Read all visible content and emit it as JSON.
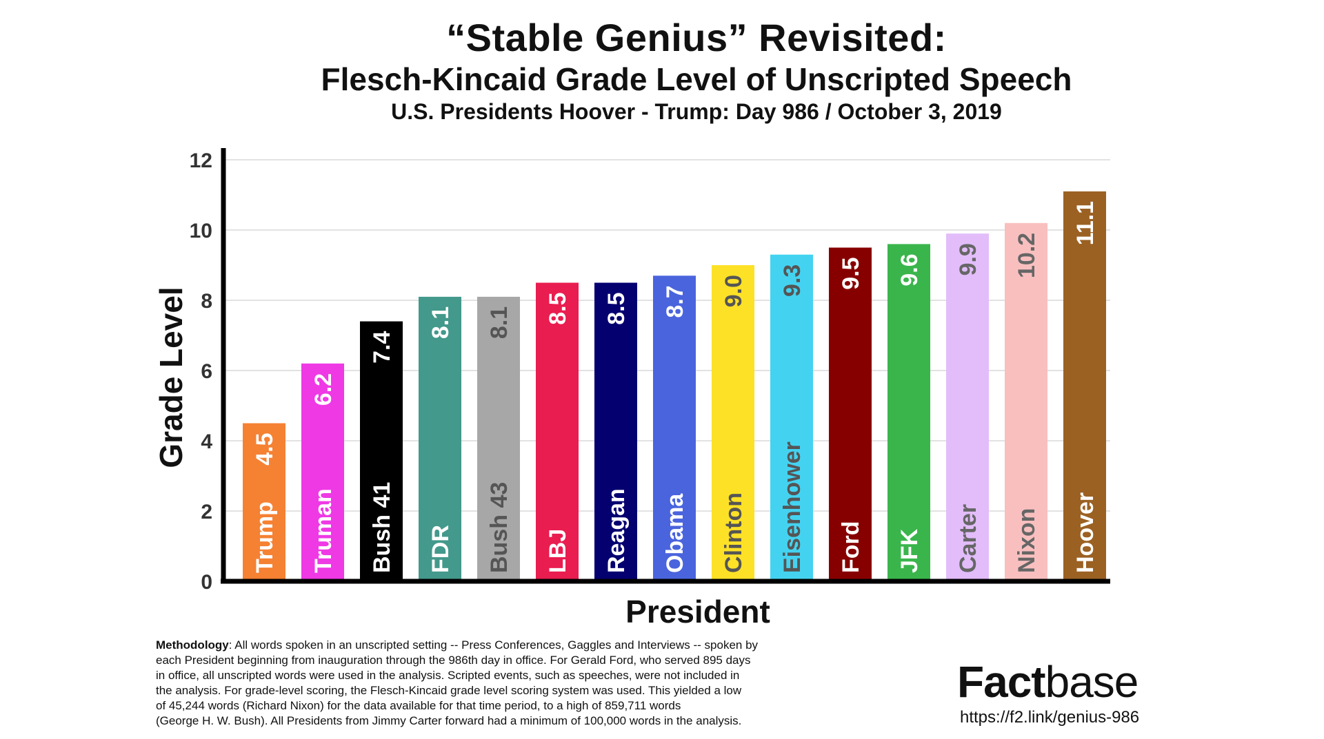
{
  "header": {
    "title": "“Stable Genius” Revisited:",
    "subtitle": "Flesch-Kincaid Grade Level of Unscripted Speech",
    "subtitle2": "U.S. Presidents Hoover - Trump: Day 986 / October 3, 2019"
  },
  "chart_data": {
    "type": "bar",
    "xlabel": "President",
    "ylabel": "Grade Level",
    "ylim": [
      0,
      12
    ],
    "yticks": [
      "0",
      "2",
      "4",
      "6",
      "8",
      "10",
      "12"
    ],
    "grid": true,
    "categories": [
      "Trump",
      "Truman",
      "Bush 41",
      "FDR",
      "Bush 43",
      "LBJ",
      "Reagan",
      "Obama",
      "Clinton",
      "Eisenhower",
      "Ford",
      "JFK",
      "Carter",
      "Nixon",
      "Hoover"
    ],
    "values": [
      4.5,
      6.2,
      7.4,
      8.1,
      8.1,
      8.5,
      8.5,
      8.7,
      9.0,
      9.3,
      9.5,
      9.6,
      9.9,
      10.2,
      11.1
    ],
    "value_labels": [
      "4.5",
      "6.2",
      "7.4",
      "8.1",
      "8.1",
      "8.5",
      "8.5",
      "8.7",
      "9.0",
      "9.3",
      "9.5",
      "9.6",
      "9.9",
      "10.2",
      "11.1"
    ],
    "colors": [
      "#f58133",
      "#ee39e5",
      "#000000",
      "#43998b",
      "#a7a7a7",
      "#e91d4f",
      "#040070",
      "#4a64dd",
      "#fde127",
      "#43d3f1",
      "#870000",
      "#3ab54c",
      "#e2bdfa",
      "#f9bfbf",
      "#9b6123"
    ],
    "label_colors": [
      "#ffffff",
      "#ffffff",
      "#ffffff",
      "#ffffff",
      "#555555",
      "#ffffff",
      "#ffffff",
      "#ffffff",
      "#555555",
      "#555555",
      "#ffffff",
      "#ffffff",
      "#666666",
      "#666666",
      "#ffffff"
    ]
  },
  "methodology": {
    "label": "Methodology",
    "lines": [
      ": All words spoken in an unscripted setting -- Press Conferences, Gaggles and Interviews -- spoken by",
      "each President beginning from inauguration through the 986th day in office. For Gerald Ford, who served 895 days",
      "in office, all unscripted words were used in the analysis. Scripted events, such as speeches, were not included in",
      "the analysis. For grade-level scoring, the Flesch-Kincaid grade level scoring system was used. This yielded a low",
      "of 45,244 words (Richard Nixon) for the data available for that time period, to a high of 859,711 words",
      "(George H. W. Bush). All Presidents from Jimmy Carter forward had a minimum of 100,000 words in the analysis."
    ]
  },
  "brand": {
    "name_bold": "Fact",
    "name_light": "base",
    "url": "https://f2.link/genius-986"
  }
}
